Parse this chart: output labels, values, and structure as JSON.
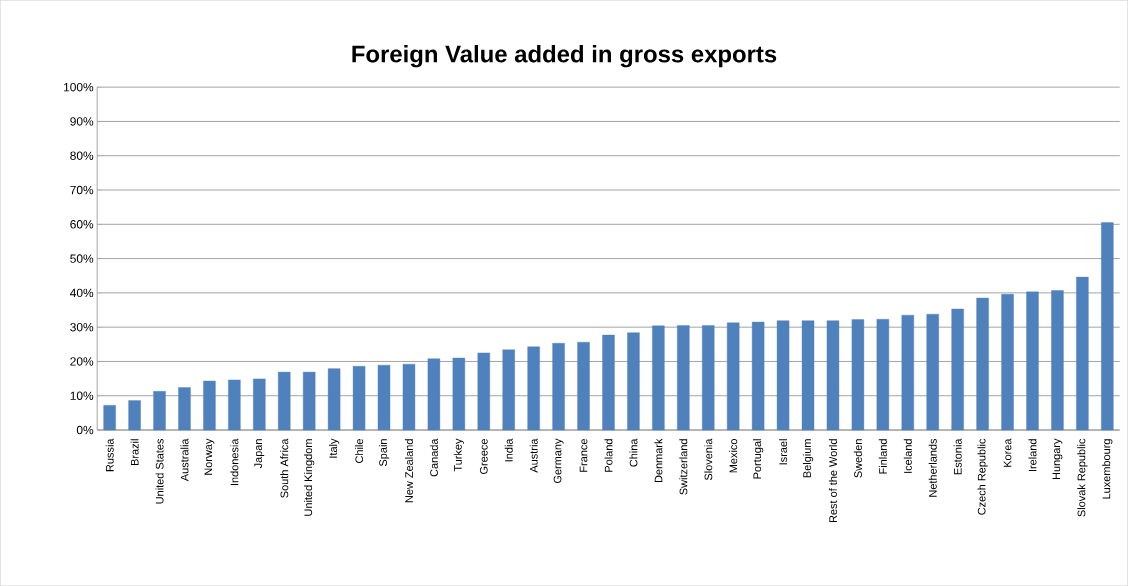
{
  "chart_data": {
    "type": "bar",
    "title": "Foreign Value added in gross exports",
    "categories": [
      "Russia",
      "Brazil",
      "United States",
      "Australia",
      "Norway",
      "Indonesia",
      "Japan",
      "South Africa",
      "United Kingdom",
      "Italy",
      "Chile",
      "Spain",
      "New Zealand",
      "Canada",
      "Turkey",
      "Greece",
      "India",
      "Austria",
      "Germany",
      "France",
      "Poland",
      "China",
      "Denmark",
      "Switzerland",
      "Slovenia",
      "Mexico",
      "Portugal",
      "Israel",
      "Belgium",
      "Rest of the World",
      "Sweden",
      "Finland",
      "Iceland",
      "Netherlands",
      "Estonia",
      "Czech Republic",
      "Korea",
      "Ireland",
      "Hungary",
      "Slovak Republic",
      "Luxembourg"
    ],
    "values": [
      7.2,
      8.6,
      11.3,
      12.4,
      14.3,
      14.6,
      14.9,
      16.9,
      16.9,
      17.9,
      18.6,
      18.9,
      19.2,
      20.8,
      21.0,
      22.5,
      23.4,
      24.3,
      25.3,
      25.6,
      27.7,
      28.4,
      30.4,
      30.5,
      30.5,
      31.3,
      31.5,
      31.9,
      31.9,
      31.9,
      32.2,
      32.3,
      33.5,
      33.8,
      35.3,
      38.5,
      39.6,
      40.3,
      40.7,
      44.6,
      60.5
    ],
    "color": "#4f81bd",
    "ylim": [
      0,
      100
    ],
    "yticks": [
      {
        "value": 0,
        "label": "0%"
      },
      {
        "value": 10,
        "label": "10%"
      },
      {
        "value": 20,
        "label": "20%"
      },
      {
        "value": 30,
        "label": "30%"
      },
      {
        "value": 40,
        "label": "40%"
      },
      {
        "value": 50,
        "label": "50%"
      },
      {
        "value": 60,
        "label": "60%"
      },
      {
        "value": 70,
        "label": "70%"
      },
      {
        "value": 80,
        "label": "80%"
      },
      {
        "value": 90,
        "label": "90%"
      },
      {
        "value": 100,
        "label": "100%"
      }
    ],
    "grid": "y"
  }
}
